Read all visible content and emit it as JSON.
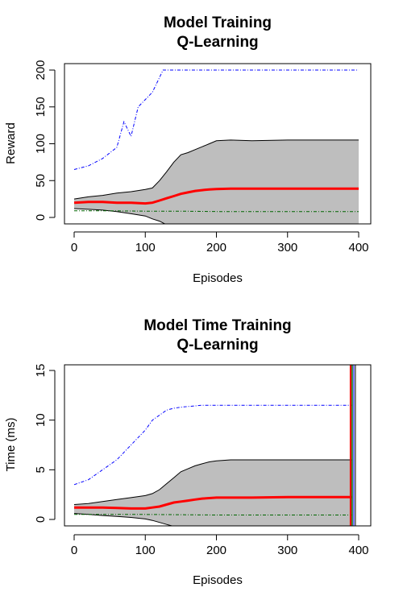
{
  "chart_data": [
    {
      "type": "line",
      "title": "Model Training",
      "subtitle": "Q-Learning",
      "xlabel": "Episodes",
      "ylabel": "Reward",
      "xlim": [
        0,
        400
      ],
      "ylim": [
        0,
        200
      ],
      "x_ticks": [
        "0",
        "100",
        "200",
        "300",
        "400"
      ],
      "y_ticks": [
        "0",
        "50",
        "100",
        "150",
        "200"
      ],
      "grid": false,
      "legend": "none",
      "colors": {
        "max": "#0000ff",
        "mean": "#ff0000",
        "band": "#bebebe",
        "band_line": "#000000",
        "min": "#006400"
      },
      "series": [
        {
          "role": "max",
          "x": [
            0,
            20,
            40,
            60,
            70,
            80,
            90,
            100,
            110,
            120,
            125,
            130,
            140,
            150,
            200,
            300,
            400
          ],
          "values": [
            65,
            70,
            80,
            95,
            130,
            110,
            150,
            160,
            170,
            190,
            200,
            200,
            200,
            200,
            200,
            200,
            200
          ]
        },
        {
          "role": "upper",
          "x": [
            0,
            20,
            40,
            60,
            80,
            100,
            110,
            120,
            130,
            140,
            150,
            160,
            170,
            180,
            190,
            200,
            220,
            250,
            300,
            350,
            400
          ],
          "values": [
            25,
            28,
            30,
            33,
            35,
            38,
            40,
            50,
            62,
            75,
            85,
            88,
            92,
            96,
            100,
            104,
            105,
            104,
            105,
            105,
            105
          ]
        },
        {
          "role": "mean",
          "x": [
            0,
            20,
            40,
            60,
            80,
            100,
            110,
            120,
            130,
            140,
            150,
            160,
            170,
            180,
            190,
            200,
            220,
            250,
            300,
            350,
            400
          ],
          "values": [
            20,
            21,
            21,
            20,
            20,
            19,
            20,
            23,
            26,
            29,
            32,
            34,
            36,
            37,
            38,
            38.5,
            39,
            39,
            39,
            39,
            39
          ]
        },
        {
          "role": "lower",
          "x": [
            0,
            20,
            40,
            60,
            80,
            100,
            110,
            120,
            130,
            140
          ],
          "values": [
            12,
            11,
            10,
            8,
            5,
            2,
            -2,
            -5,
            -10,
            -15
          ]
        },
        {
          "role": "min",
          "x": [
            0,
            50,
            100,
            150,
            200,
            300,
            400
          ],
          "values": [
            9,
            9,
            8.5,
            8.5,
            8,
            8,
            8
          ]
        }
      ]
    },
    {
      "type": "line",
      "title": "Model Time Training",
      "subtitle": "Q-Learning",
      "xlabel": "Episodes",
      "ylabel": "Time (ms)",
      "xlim": [
        0,
        400
      ],
      "ylim": [
        0,
        15
      ],
      "x_ticks": [
        "0",
        "100",
        "200",
        "300",
        "400"
      ],
      "y_ticks": [
        "0",
        "5",
        "10",
        "15"
      ],
      "grid": false,
      "legend": "none",
      "colors": {
        "max": "#0000ff",
        "mean": "#ff0000",
        "band": "#bebebe",
        "band_line": "#000000",
        "min": "#006400",
        "end_line": "#000000"
      },
      "series": [
        {
          "role": "max",
          "x": [
            0,
            20,
            40,
            60,
            80,
            100,
            110,
            120,
            130,
            140,
            150,
            180,
            200,
            250,
            300,
            350,
            390
          ],
          "values": [
            3.5,
            4,
            5,
            6,
            7.5,
            9,
            10,
            10.5,
            11,
            11.2,
            11.3,
            11.5,
            11.5,
            11.5,
            11.5,
            11.5,
            11.5
          ]
        },
        {
          "role": "upper",
          "x": [
            0,
            20,
            40,
            60,
            80,
            100,
            110,
            120,
            130,
            140,
            150,
            160,
            170,
            180,
            190,
            200,
            220,
            250,
            300,
            350,
            390
          ],
          "values": [
            1.5,
            1.6,
            1.8,
            2,
            2.2,
            2.4,
            2.6,
            3,
            3.6,
            4.2,
            4.8,
            5.1,
            5.4,
            5.6,
            5.8,
            5.9,
            6,
            6,
            6,
            6,
            6
          ]
        },
        {
          "role": "mean",
          "x": [
            0,
            20,
            40,
            60,
            80,
            100,
            110,
            120,
            130,
            140,
            150,
            160,
            170,
            180,
            190,
            200,
            220,
            250,
            300,
            350,
            390
          ],
          "values": [
            1.2,
            1.2,
            1.2,
            1.15,
            1.1,
            1.1,
            1.2,
            1.3,
            1.5,
            1.7,
            1.8,
            1.9,
            2,
            2.1,
            2.15,
            2.2,
            2.2,
            2.2,
            2.25,
            2.25,
            2.25
          ]
        },
        {
          "role": "lower",
          "x": [
            0,
            20,
            40,
            60,
            80,
            100,
            110,
            120,
            130,
            140
          ],
          "values": [
            0.6,
            0.5,
            0.4,
            0.3,
            0.2,
            0.05,
            -0.1,
            -0.3,
            -0.5,
            -0.7
          ]
        },
        {
          "role": "min",
          "x": [
            0,
            100,
            200,
            300,
            390
          ],
          "values": [
            0.5,
            0.5,
            0.45,
            0.45,
            0.45
          ]
        }
      ],
      "end_x": 392
    }
  ]
}
